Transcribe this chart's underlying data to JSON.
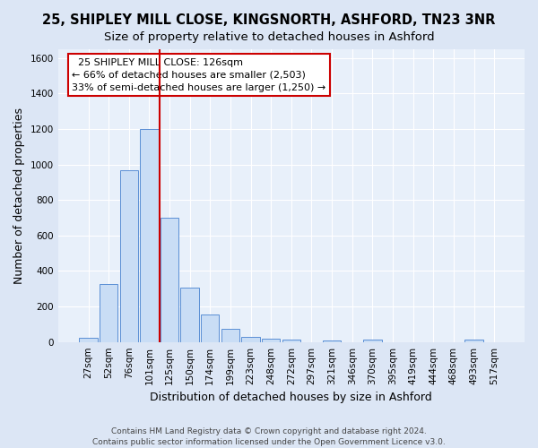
{
  "title": "25, SHIPLEY MILL CLOSE, KINGSNORTH, ASHFORD, TN23 3NR",
  "subtitle": "Size of property relative to detached houses in Ashford",
  "xlabel": "Distribution of detached houses by size in Ashford",
  "ylabel": "Number of detached properties",
  "footer_line1": "Contains HM Land Registry data © Crown copyright and database right 2024.",
  "footer_line2": "Contains public sector information licensed under the Open Government Licence v3.0.",
  "bin_labels": [
    "27sqm",
    "52sqm",
    "76sqm",
    "101sqm",
    "125sqm",
    "150sqm",
    "174sqm",
    "199sqm",
    "223sqm",
    "248sqm",
    "272sqm",
    "297sqm",
    "321sqm",
    "346sqm",
    "370sqm",
    "395sqm",
    "419sqm",
    "444sqm",
    "468sqm",
    "493sqm",
    "517sqm"
  ],
  "bar_values": [
    25,
    325,
    970,
    1200,
    700,
    305,
    155,
    75,
    30,
    20,
    12,
    0,
    10,
    0,
    15,
    0,
    0,
    0,
    0,
    12,
    0
  ],
  "bar_color": "#c9ddf5",
  "bar_edgecolor": "#5b8fd4",
  "annotation_box_text": "  25 SHIPLEY MILL CLOSE: 126sqm  \n← 66% of detached houses are smaller (2,503)\n33% of semi-detached houses are larger (1,250) →",
  "annotation_box_edgecolor": "#cc0000",
  "vline_color": "#cc0000",
  "ylim": [
    0,
    1650
  ],
  "yticks": [
    0,
    200,
    400,
    600,
    800,
    1000,
    1200,
    1400,
    1600
  ],
  "bg_color": "#dce6f5",
  "plot_bg_color": "#e8f0fa",
  "title_fontsize": 10.5,
  "subtitle_fontsize": 9.5,
  "axis_label_fontsize": 9,
  "tick_fontsize": 7.5,
  "footer_fontsize": 6.5,
  "annotation_fontsize": 8
}
